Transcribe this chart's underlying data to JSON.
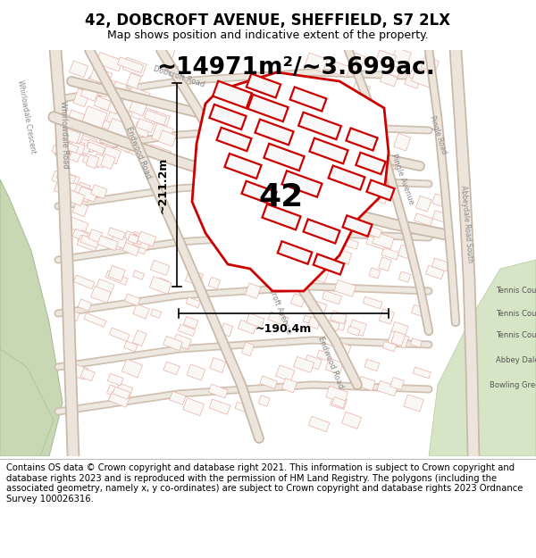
{
  "title": "42, DOBCROFT AVENUE, SHEFFIELD, S7 2LX",
  "subtitle": "Map shows position and indicative extent of the property.",
  "area_text": "~14971m²/~3.699ac.",
  "label_42": "42",
  "dim_width": "~190.4m",
  "dim_height": "~211.2m",
  "footer": "Contains OS data © Crown copyright and database right 2021. This information is subject to Crown copyright and database rights 2023 and is reproduced with the permission of HM Land Registry. The polygons (including the associated geometry, namely x, y co-ordinates) are subject to Crown copyright and database rights 2023 Ordnance Survey 100026316.",
  "map_bg": "#f5f0eb",
  "building_fill": "#ffffff",
  "building_edge": "#e8a0a0",
  "road_fill": "#f0e8e0",
  "road_edge": "#d8c8b8",
  "prop_edge": "#cc0000",
  "prop_fill": "#ffffff",
  "inner_edge": "#cc0000",
  "inner_fill": "#ffffff",
  "dim_color": "#000000",
  "green_fill": "#d0ddc0",
  "green_edge": "#b0c890",
  "title_fs": 12,
  "subtitle_fs": 9,
  "area_fs": 19,
  "label_fs": 26,
  "footer_fs": 7.2,
  "road_text_color": "#888888",
  "road_text_fs": 6.0
}
